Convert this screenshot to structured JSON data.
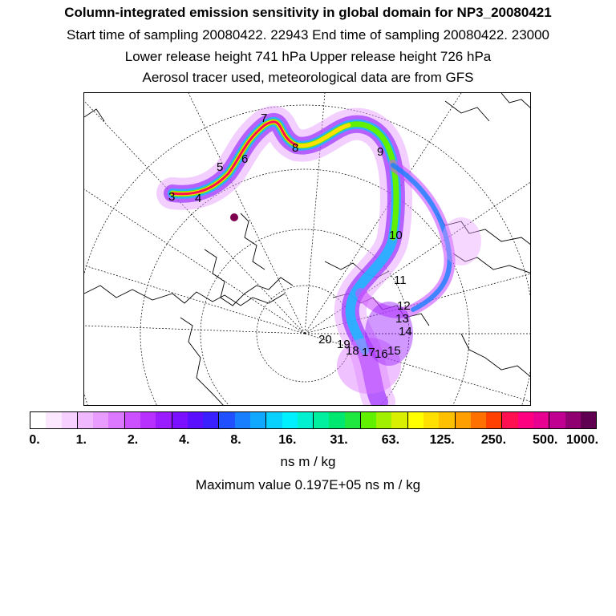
{
  "header": {
    "title": "Column-integrated emission sensitivity in global domain for NP3_20080421",
    "sampling": "Start time of sampling 20080422. 22943     End time of sampling 20080422. 23000",
    "release": "Lower release height  741 hPa        Upper release height  726 hPa",
    "note": "Aerosol tracer used, meteorological data are from GFS"
  },
  "map": {
    "track_labels": [
      "3",
      "4",
      "5",
      "6",
      "7",
      "8",
      "9",
      "10",
      "11",
      "12",
      "13",
      "14",
      "15",
      "16",
      "17",
      "18",
      "19",
      "20"
    ]
  },
  "colorbar": {
    "colors": [
      "#ffffff",
      "#fbe8ff",
      "#f6d0ff",
      "#f0b8ff",
      "#e89cff",
      "#dc78ff",
      "#cc50ff",
      "#b830ff",
      "#9a1cff",
      "#7a10ff",
      "#5a10ff",
      "#3a20ff",
      "#2050ff",
      "#1880ff",
      "#10a8ff",
      "#08d0ff",
      "#00f0ff",
      "#00f0d0",
      "#00f0a0",
      "#00e870",
      "#20e840",
      "#60f000",
      "#a0f000",
      "#d8f000",
      "#ffff00",
      "#ffe000",
      "#ffc000",
      "#ffa000",
      "#ff7000",
      "#ff4000",
      "#ff1050",
      "#ff0080",
      "#e80090",
      "#c00090",
      "#900070",
      "#600050"
    ],
    "tick_labels": [
      "0.",
      "1.",
      "2.",
      "4.",
      "8.",
      "16.",
      "31.",
      "63.",
      "125.",
      "250.",
      "500.",
      "1000."
    ],
    "units": "ns m / kg"
  },
  "footer": {
    "max_value": "Maximum value  0.197E+05 ns m / kg"
  }
}
